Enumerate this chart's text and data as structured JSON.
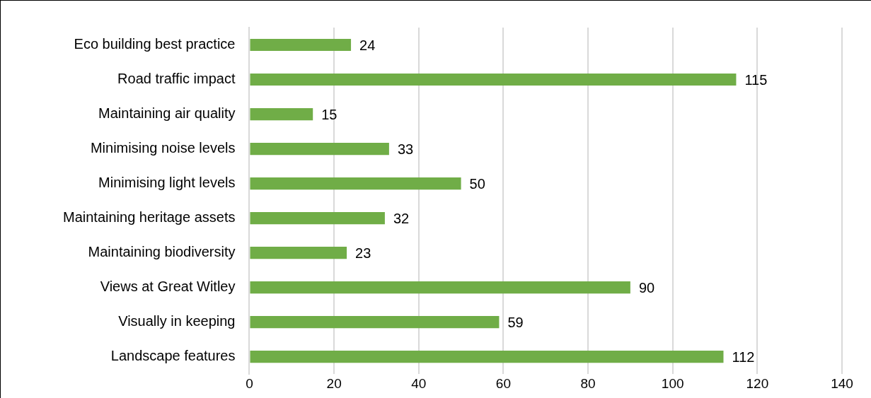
{
  "chart_data": {
    "type": "bar",
    "orientation": "horizontal",
    "categories": [
      "Eco building best practice",
      "Road traffic impact",
      "Maintaining air quality",
      "Minimising noise levels",
      "Minimising light levels",
      "Maintaining heritage assets",
      "Maintaining biodiversity",
      "Views at Great Witley",
      "Visually in keeping",
      "Landscape features"
    ],
    "values": [
      24,
      115,
      15,
      33,
      50,
      32,
      23,
      90,
      59,
      112
    ],
    "color": "#70ad47",
    "xlim": [
      0,
      140
    ],
    "xticks": [
      0,
      20,
      40,
      60,
      80,
      100,
      120,
      140
    ],
    "grid": "x",
    "data_labels": true,
    "legend": false
  }
}
